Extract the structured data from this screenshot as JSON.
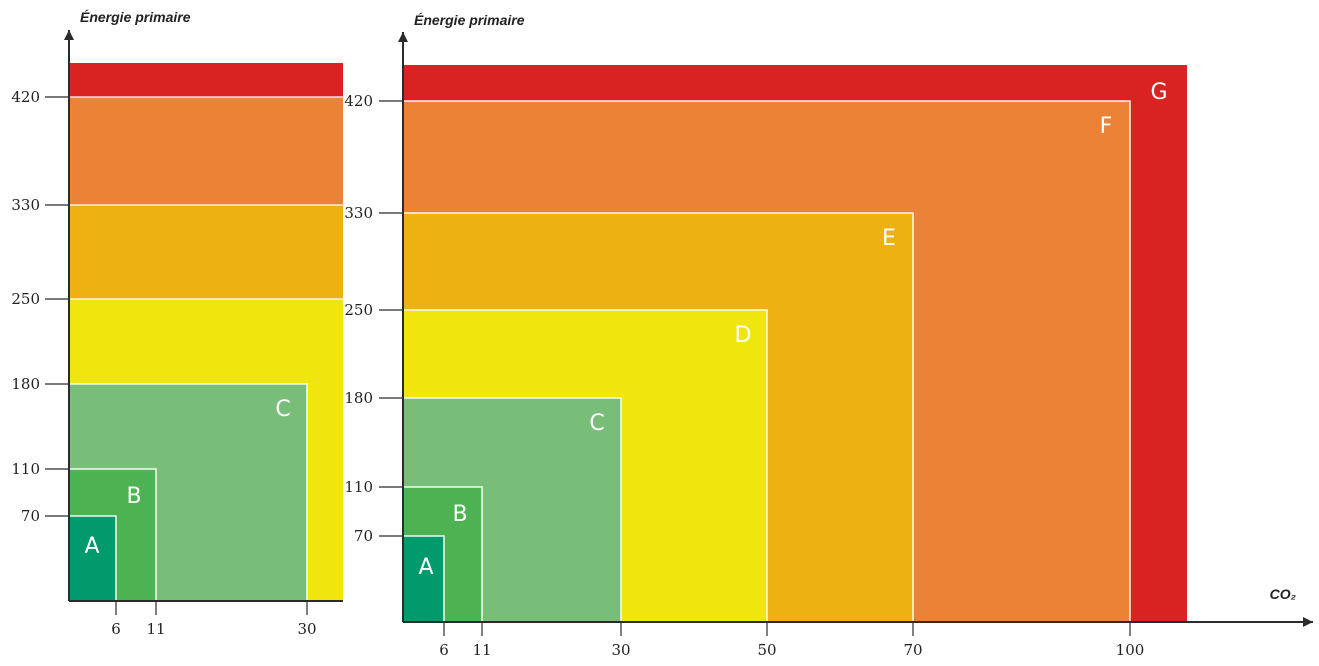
{
  "chart_data": [
    {
      "type": "area",
      "title": "",
      "ylabel": "Énergie primaire",
      "xlabel": "",
      "x_ticks": [
        6,
        11,
        30
      ],
      "y_ticks": [
        70,
        110,
        180,
        250,
        330,
        420
      ],
      "colors": {
        "A": "#009a6c",
        "B": "#4db251",
        "C": "#78be79",
        "D": "#f1e50e",
        "E": "#edb211",
        "F": "#ec8236",
        "G": "#d82322"
      },
      "classes": [
        {
          "label": "A",
          "co2_max": 6,
          "energy_max": 70,
          "color": "#009a6c"
        },
        {
          "label": "B",
          "co2_max": 11,
          "energy_max": 110,
          "color": "#4db251"
        },
        {
          "label": "C",
          "co2_max": 30,
          "energy_max": 180,
          "color": "#78be79"
        },
        {
          "label": "",
          "co2_max": null,
          "energy_max": 250,
          "color": "#f1e50e"
        },
        {
          "label": "",
          "co2_max": null,
          "energy_max": 330,
          "color": "#edb211"
        },
        {
          "label": "",
          "co2_max": null,
          "energy_max": 420,
          "color": "#ec8236"
        },
        {
          "label": "",
          "co2_max": null,
          "energy_max": null,
          "color": "#d82322"
        }
      ]
    },
    {
      "type": "area",
      "title": "",
      "ylabel": "Énergie primaire",
      "xlabel": "CO₂",
      "x_ticks": [
        6,
        11,
        30,
        50,
        70,
        100
      ],
      "y_ticks": [
        70,
        110,
        180,
        250,
        330,
        420
      ],
      "colors": {
        "A": "#009a6c",
        "B": "#4db251",
        "C": "#78be79",
        "D": "#f1e50e",
        "E": "#edb211",
        "F": "#ec8236",
        "G": "#d82322"
      },
      "classes": [
        {
          "label": "A",
          "co2_max": 6,
          "energy_max": 70,
          "color": "#009a6c"
        },
        {
          "label": "B",
          "co2_max": 11,
          "energy_max": 110,
          "color": "#4db251"
        },
        {
          "label": "C",
          "co2_max": 30,
          "energy_max": 180,
          "color": "#78be79"
        },
        {
          "label": "D",
          "co2_max": 50,
          "energy_max": 250,
          "color": "#f1e50e"
        },
        {
          "label": "E",
          "co2_max": 70,
          "energy_max": 330,
          "color": "#edb211"
        },
        {
          "label": "F",
          "co2_max": 100,
          "energy_max": 420,
          "color": "#ec8236"
        },
        {
          "label": "G",
          "co2_max": null,
          "energy_max": null,
          "color": "#d82322"
        }
      ]
    }
  ]
}
